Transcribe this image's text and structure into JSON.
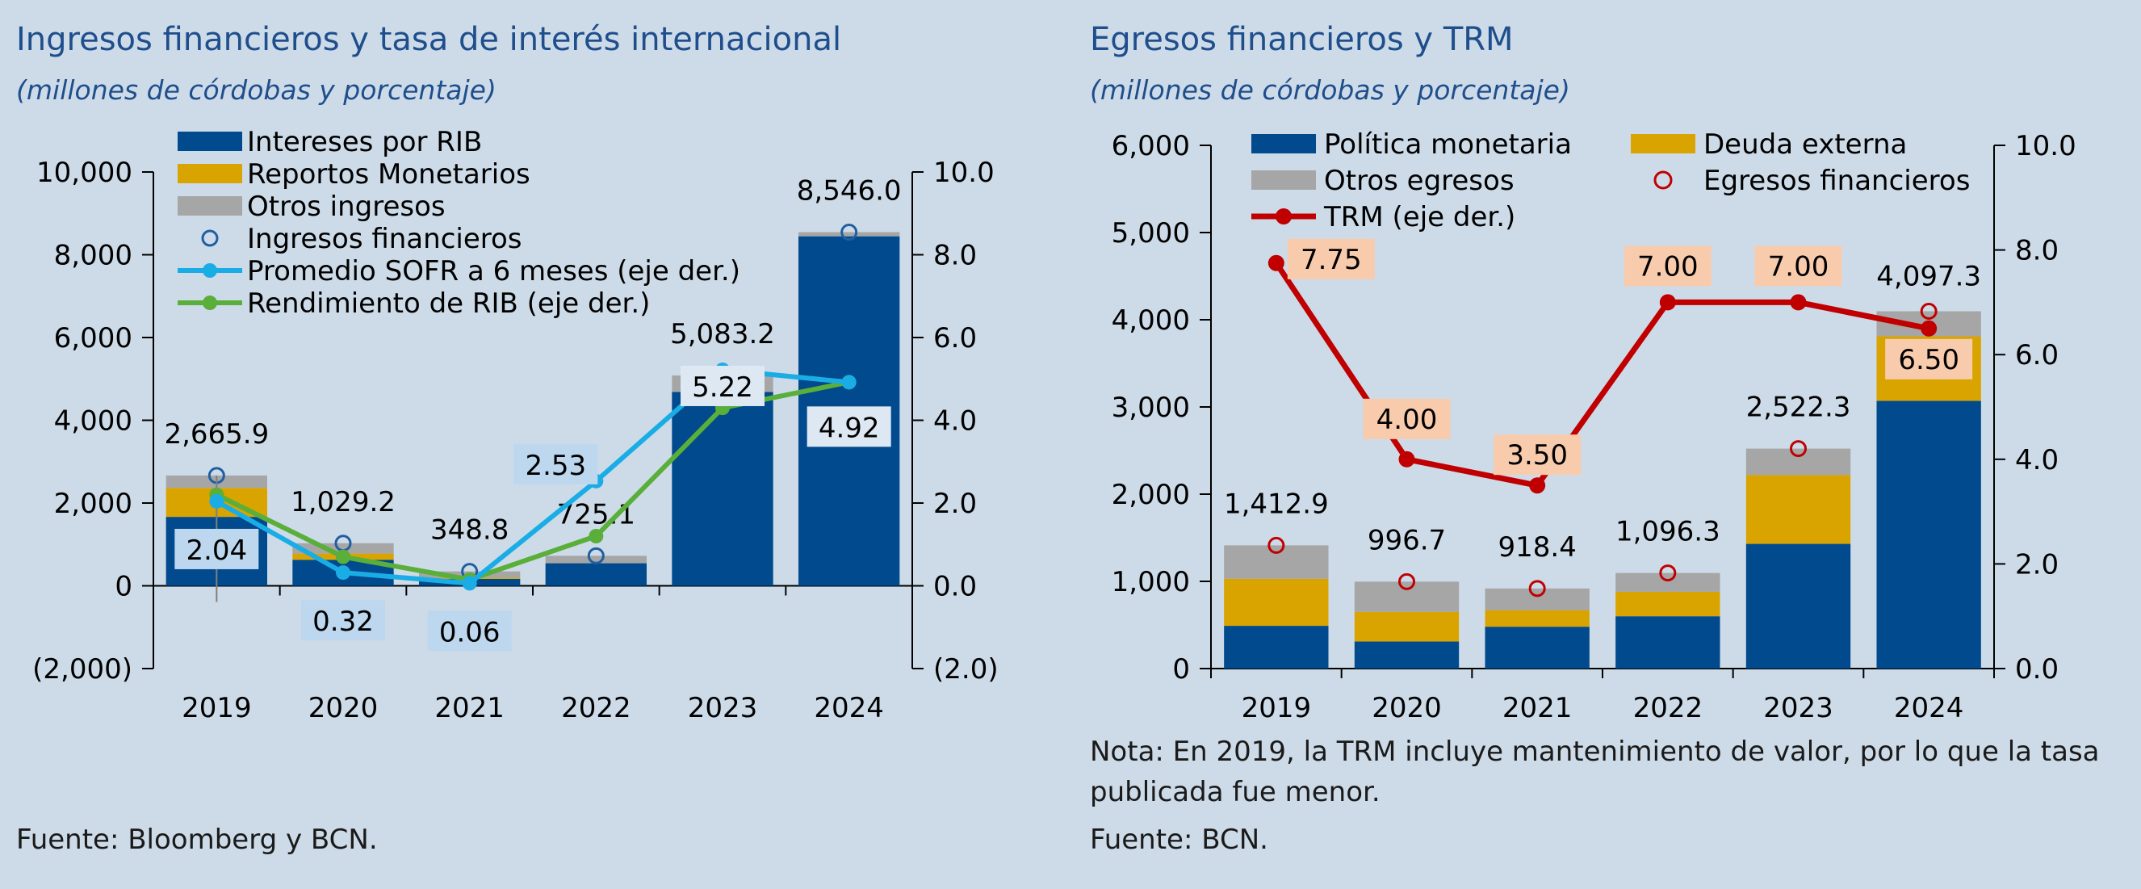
{
  "charts": {
    "left": {
      "title": "Ingresos financieros y tasa de interés internacional",
      "subtitle": "(millones de córdobas y porcentaje)",
      "source": "Fuente: Bloomberg y BCN."
    },
    "right": {
      "title": "Egresos financieros y TRM",
      "subtitle": "(millones de córdobas y porcentaje)",
      "note": "Nota: En 2019, la TRM incluye mantenimiento de valor, por lo que la tasa publicada fue menor.",
      "source": "Fuente: BCN."
    }
  },
  "colors": {
    "navy": "#004a8d",
    "gold": "#d9a400",
    "gray": "#a6a6a6",
    "sofr": "#1aade5",
    "rib": "#5aae3a",
    "trm": "#c00000",
    "trm_label_bg": "#f8cbad",
    "sofr_label_bg": "#bdd7ee"
  },
  "chart_data": [
    {
      "type": "bar",
      "stacked": true,
      "categories": [
        "2019",
        "2020",
        "2021",
        "2022",
        "2023",
        "2024"
      ],
      "series": [
        {
          "name": "Intereses por RIB",
          "values": [
            1665.9,
            629.2,
            168.8,
            545.1,
            4683.2,
            8446.0
          ],
          "color": "#004a8d"
        },
        {
          "name": "Reportos Monetarios",
          "values": [
            700,
            150,
            30,
            0,
            0,
            0
          ],
          "color": "#d9a400"
        },
        {
          "name": "Otros ingresos",
          "values": [
            300,
            250,
            150,
            180,
            400,
            100
          ],
          "color": "#a6a6a6"
        }
      ],
      "markers": {
        "name": "Ingresos financieros",
        "values": [
          2665.9,
          1029.2,
          348.8,
          725.1,
          5083.2,
          8546.0
        ]
      },
      "total_labels": [
        "2,665.9",
        "1,029.2",
        "348.8",
        "725.1",
        "5,083.2",
        "8,546.0"
      ],
      "lines_right_axis": [
        {
          "name": "Promedio SOFR a 6 meses (eje der.)",
          "values": [
            2.04,
            0.32,
            0.06,
            2.53,
            5.22,
            4.92
          ],
          "labels": [
            "2.04",
            "0.32",
            "0.06",
            "2.53",
            "5.22",
            "4.92"
          ]
        },
        {
          "name": "Rendimiento de RIB (eje der.)",
          "values": [
            2.2,
            0.7,
            0.15,
            1.2,
            4.3,
            4.92
          ]
        }
      ],
      "y_left": {
        "min": -2000,
        "max": 10000,
        "ticks": [
          "(2,000)",
          "0",
          "2,000",
          "4,000",
          "6,000",
          "8,000",
          "10,000"
        ],
        "tick_values": [
          -2000,
          0,
          2000,
          4000,
          6000,
          8000,
          10000
        ]
      },
      "y_right": {
        "min": -2,
        "max": 10,
        "ticks": [
          "(2.0)",
          "0.0",
          "2.0",
          "4.0",
          "6.0",
          "8.0",
          "10.0"
        ],
        "tick_values": [
          -2,
          0,
          2,
          4,
          6,
          8,
          10
        ]
      },
      "legend_placement": "top-left",
      "grid": false
    },
    {
      "type": "bar",
      "stacked": true,
      "categories": [
        "2019",
        "2020",
        "2021",
        "2022",
        "2023",
        "2024"
      ],
      "series": [
        {
          "name": "Política monetaria",
          "values": [
            490,
            310,
            480,
            600,
            1430,
            3070
          ],
          "color": "#004a8d"
        },
        {
          "name": "Deuda externa",
          "values": [
            540,
            340,
            190,
            280,
            790,
            740
          ],
          "color": "#d9a400"
        },
        {
          "name": "Otros egresos",
          "values": [
            382.9,
            346.7,
            248.4,
            216.3,
            302.3,
            287.3
          ],
          "color": "#a6a6a6"
        }
      ],
      "markers": {
        "name": "Egresos financieros",
        "values": [
          1412.9,
          996.7,
          918.4,
          1096.3,
          2522.3,
          4097.3
        ]
      },
      "total_labels": [
        "1,412.9",
        "996.7",
        "918.4",
        "1,096.3",
        "2,522.3",
        "4,097.3"
      ],
      "lines_right_axis": [
        {
          "name": "TRM (eje der.)",
          "values": [
            7.75,
            4.0,
            3.5,
            7.0,
            7.0,
            6.5
          ],
          "labels": [
            "7.75",
            "4.00",
            "3.50",
            "7.00",
            "7.00",
            "6.50"
          ]
        }
      ],
      "y_left": {
        "min": 0,
        "max": 6000,
        "ticks": [
          "0",
          "1,000",
          "2,000",
          "3,000",
          "4,000",
          "5,000",
          "6,000"
        ],
        "tick_values": [
          0,
          1000,
          2000,
          3000,
          4000,
          5000,
          6000
        ]
      },
      "y_right": {
        "min": 0,
        "max": 10,
        "ticks": [
          "0.0",
          "2.0",
          "4.0",
          "6.0",
          "8.0",
          "10.0"
        ],
        "tick_values": [
          0,
          2,
          4,
          6,
          8,
          10
        ]
      },
      "legend_placement": "top-left",
      "grid": false
    }
  ]
}
